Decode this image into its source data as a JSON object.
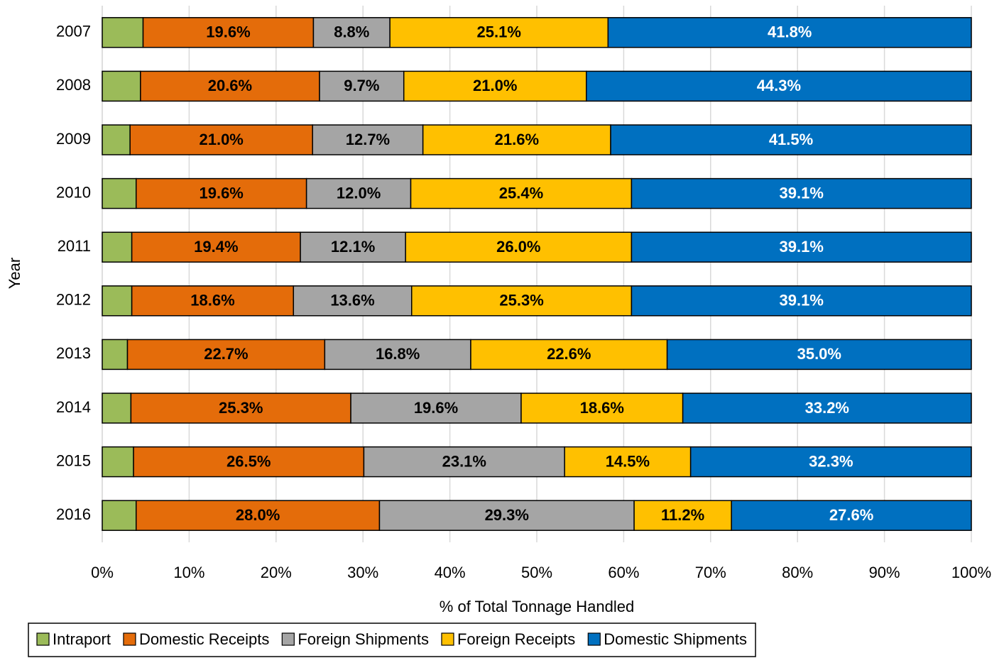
{
  "chart_data": {
    "type": "stacked_bar_horizontal",
    "x_axis_label": "% of Total Tonnage Handled",
    "y_axis_label": "Year",
    "categories": [
      "2007",
      "2008",
      "2009",
      "2010",
      "2011",
      "2012",
      "2013",
      "2014",
      "2015",
      "2016"
    ],
    "series": [
      {
        "name": "Intraport",
        "color": "#9bbb59",
        "label_color": "#000000",
        "values": [
          4.7,
          4.4,
          3.2,
          3.9,
          3.4,
          3.4,
          2.9,
          3.3,
          3.6,
          3.9
        ]
      },
      {
        "name": "Domestic Receipts",
        "color": "#e46c0a",
        "label_color": "#000000",
        "values": [
          19.6,
          20.6,
          21.0,
          19.6,
          19.4,
          18.6,
          22.7,
          25.3,
          26.5,
          28.0
        ],
        "value_labels": [
          "19.6%",
          "20.6%",
          "21.0%",
          "19.6%",
          "19.4%",
          "18.6%",
          "22.7%",
          "25.3%",
          "26.5%",
          "28.0%"
        ]
      },
      {
        "name": "Foreign Shipments",
        "color": "#a5a5a5",
        "label_color": "#000000",
        "values": [
          8.8,
          9.7,
          12.7,
          12.0,
          12.1,
          13.6,
          16.8,
          19.6,
          23.1,
          29.3
        ],
        "value_labels": [
          "8.8%",
          "9.7%",
          "12.7%",
          "12.0%",
          "12.1%",
          "13.6%",
          "16.8%",
          "19.6%",
          "23.1%",
          "29.3%"
        ]
      },
      {
        "name": "Foreign Receipts",
        "color": "#ffc000",
        "label_color": "#000000",
        "values": [
          25.1,
          21.0,
          21.6,
          25.4,
          26.0,
          25.3,
          22.6,
          18.6,
          14.5,
          11.2
        ],
        "value_labels": [
          "25.1%",
          "21.0%",
          "21.6%",
          "25.4%",
          "26.0%",
          "25.3%",
          "22.6%",
          "18.6%",
          "14.5%",
          "11.2%"
        ]
      },
      {
        "name": "Domestic Shipments",
        "color": "#0070c0",
        "label_color": "#ffffff",
        "values": [
          41.8,
          44.3,
          41.5,
          39.1,
          39.1,
          39.1,
          35.0,
          33.2,
          32.3,
          27.6
        ],
        "value_labels": [
          "41.8%",
          "44.3%",
          "41.5%",
          "39.1%",
          "39.1%",
          "39.1%",
          "35.0%",
          "33.2%",
          "32.3%",
          "27.6%"
        ]
      }
    ],
    "xlim": [
      0,
      100
    ],
    "xticks": [
      {
        "value": 0,
        "label": "0%"
      },
      {
        "value": 10,
        "label": "10%"
      },
      {
        "value": 20,
        "label": "20%"
      },
      {
        "value": 30,
        "label": "30%"
      },
      {
        "value": 40,
        "label": "40%"
      },
      {
        "value": 50,
        "label": "50%"
      },
      {
        "value": 60,
        "label": "60%"
      },
      {
        "value": 70,
        "label": "70%"
      },
      {
        "value": 80,
        "label": "80%"
      },
      {
        "value": 90,
        "label": "90%"
      },
      {
        "value": 100,
        "label": "100%"
      }
    ],
    "grid": true,
    "legend": "bottom"
  }
}
